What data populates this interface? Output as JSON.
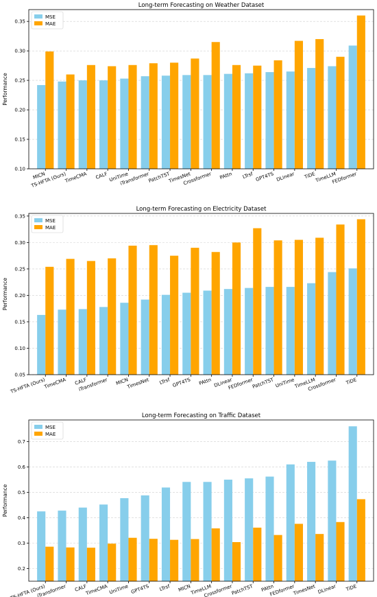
{
  "colors": {
    "mse": "#87CEEB",
    "mae": "#FFA500",
    "grid": "#cfcfcf"
  },
  "chart_data": [
    {
      "type": "bar",
      "title": "Long-term Forecasting on Weather Dataset",
      "ylabel": "Performance",
      "ylim": [
        0.1,
        0.37
      ],
      "yticks": [
        "0.10",
        "0.15",
        "0.20",
        "0.25",
        "0.30",
        "0.35"
      ],
      "legend": "top-left",
      "grid": true,
      "categories": [
        "MICN",
        "TS-HFTA (Ours)",
        "TimeCMA",
        "CALF",
        "UniTime",
        "iTransformer",
        "PatchTST",
        "TimesNet",
        "Crossformer",
        "PAttn",
        "LTrsf",
        "GPT4TS",
        "DLinear",
        "TiDE",
        "TimeLLM",
        "FEDformer"
      ],
      "series": [
        {
          "name": "MSE",
          "values": [
            0.242,
            0.248,
            0.25,
            0.25,
            0.253,
            0.257,
            0.258,
            0.259,
            0.259,
            0.261,
            0.262,
            0.264,
            0.265,
            0.271,
            0.274,
            0.309
          ]
        },
        {
          "name": "MAE",
          "values": [
            0.299,
            0.26,
            0.276,
            0.274,
            0.276,
            0.279,
            0.28,
            0.287,
            0.315,
            0.276,
            0.275,
            0.284,
            0.317,
            0.32,
            0.29,
            0.36
          ]
        }
      ]
    },
    {
      "type": "bar",
      "title": "Long-term Forecasting on Electricity Dataset",
      "ylabel": "Performance",
      "ylim": [
        0.05,
        0.355
      ],
      "yticks": [
        "0.05",
        "0.10",
        "0.15",
        "0.20",
        "0.25",
        "0.30",
        "0.35"
      ],
      "legend": "top-left",
      "grid": true,
      "categories": [
        "TS-HFTA (Ours)",
        "TimeCMA",
        "CALF",
        "iTransformer",
        "MICN",
        "TimesNet",
        "LTrsf",
        "GPT4TS",
        "PAttn",
        "DLinear",
        "FEDformer",
        "PatchTST",
        "UniTime",
        "TimeLLM",
        "Crossformer",
        "TiDE"
      ],
      "series": [
        {
          "name": "MSE",
          "values": [
            0.163,
            0.173,
            0.174,
            0.178,
            0.186,
            0.192,
            0.201,
            0.205,
            0.209,
            0.212,
            0.214,
            0.216,
            0.216,
            0.223,
            0.244,
            0.251
          ]
        },
        {
          "name": "MAE",
          "values": [
            0.254,
            0.269,
            0.265,
            0.27,
            0.294,
            0.295,
            0.275,
            0.29,
            0.282,
            0.3,
            0.327,
            0.304,
            0.305,
            0.309,
            0.334,
            0.344
          ]
        }
      ]
    },
    {
      "type": "bar",
      "title": "Long-term Forecasting on Traffic Dataset",
      "ylabel": "Performance",
      "ylim": [
        0.15,
        0.785
      ],
      "yticks": [
        "0.2",
        "0.3",
        "0.4",
        "0.5",
        "0.6",
        "0.7"
      ],
      "legend": "top-left",
      "grid": true,
      "categories": [
        "TS-HFTA (Ours)",
        "iTransformer",
        "CALF",
        "TimeCMA",
        "UniTime",
        "GPT4TS",
        "LTrsf",
        "MICN",
        "TimeLLM",
        "Crossformer",
        "PatchTST",
        "PAttn",
        "FEDformer",
        "TimesNet",
        "DLinear",
        "TiDE"
      ],
      "series": [
        {
          "name": "MSE",
          "values": [
            0.425,
            0.428,
            0.44,
            0.452,
            0.477,
            0.488,
            0.519,
            0.541,
            0.541,
            0.55,
            0.555,
            0.562,
            0.61,
            0.62,
            0.625,
            0.76
          ]
        },
        {
          "name": "MAE",
          "values": [
            0.286,
            0.283,
            0.282,
            0.298,
            0.321,
            0.317,
            0.313,
            0.316,
            0.358,
            0.304,
            0.361,
            0.332,
            0.376,
            0.336,
            0.383,
            0.473
          ]
        }
      ]
    }
  ]
}
